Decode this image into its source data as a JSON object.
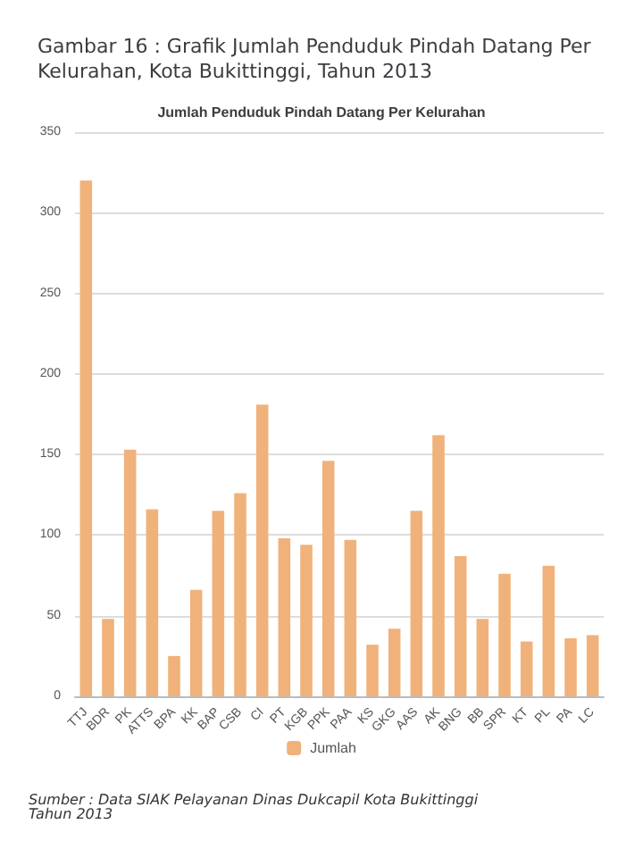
{
  "chart_data": {
    "type": "bar",
    "title": "Gambar 16 : Grafik Jumlah Penduduk Pindah Datang Per Kelurahan, Kota Bukittinggi, Tahun 2013",
    "subtitle": "Jumlah Penduduk Pindah Datang Per Kelurahan",
    "categories": [
      "TTJ",
      "BDR",
      "PK",
      "ATTS",
      "BPA",
      "KK",
      "BAP",
      "CSB",
      "CI",
      "PT",
      "KGB",
      "PPK",
      "PAA",
      "KS",
      "GKG",
      "AAS",
      "AK",
      "BNG",
      "BB",
      "SPR",
      "KT",
      "PL",
      "PA",
      "LC"
    ],
    "series": [
      {
        "name": "Jumlah",
        "color": "#f0b27a",
        "values": [
          320,
          48,
          153,
          116,
          25,
          66,
          115,
          126,
          181,
          98,
          94,
          146,
          97,
          32,
          42,
          115,
          162,
          87,
          48,
          76,
          34,
          81,
          36,
          38
        ]
      }
    ],
    "ylim": [
      0,
      350
    ],
    "yticks": [
      0,
      50,
      100,
      150,
      200,
      250,
      300,
      350
    ],
    "grid": "y",
    "legend": "bottom",
    "annotations": [
      "Sumber : Data SIAK Pelayanan Dinas Dukcapil Kota Bukittinggi Tahun 2013"
    ]
  }
}
